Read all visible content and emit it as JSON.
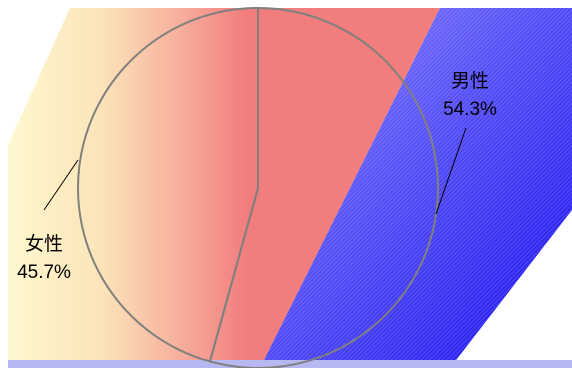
{
  "chart_data": {
    "type": "pie",
    "slices": [
      {
        "label": "男性",
        "pct_text": "54.3%",
        "value": 54.3,
        "color": "#ef7a7a"
      },
      {
        "label": "女性",
        "pct_text": "45.7%",
        "value": 45.7,
        "color": "#fff3c8"
      }
    ],
    "title": "",
    "legend": "none",
    "colors": {
      "background_left": "#fff3c8",
      "background_mid": "#f47a7a",
      "background_band": "#3b2ff2",
      "outline": "#808080"
    }
  }
}
